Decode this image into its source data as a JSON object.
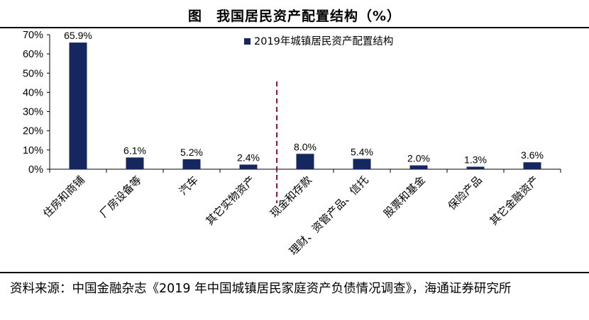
{
  "title": "图　我国居民资产配置结构（%）",
  "source": "资料来源：中国金融杂志《2019 年中国城镇居民家庭资产负债情况调查》，海通证券研究所",
  "colors": {
    "bar": "#14285f",
    "divider": "#d0021b"
  },
  "chart_data": {
    "type": "bar",
    "categories": [
      "住房和商铺",
      "厂房设备等",
      "汽车",
      "其它实物资产",
      "现金和存款",
      "理财、资管产品、信托",
      "股票和基金",
      "保险产品",
      "其它金融资产"
    ],
    "series": [
      {
        "name": "2019年城镇居民资产配置结构",
        "values": [
          65.9,
          6.1,
          5.2,
          2.4,
          8.0,
          5.4,
          2.0,
          1.3,
          3.6
        ]
      }
    ],
    "data_labels": [
      "65.9%",
      "6.1%",
      "5.2%",
      "2.4%",
      "8.0%",
      "5.4%",
      "2.0%",
      "1.3%",
      "3.6%"
    ],
    "y_ticks": [
      "0%",
      "10%",
      "20%",
      "30%",
      "40%",
      "50%",
      "60%",
      "70%"
    ],
    "ylim": [
      0,
      70
    ],
    "grid": false,
    "legend_position": "top-right"
  }
}
